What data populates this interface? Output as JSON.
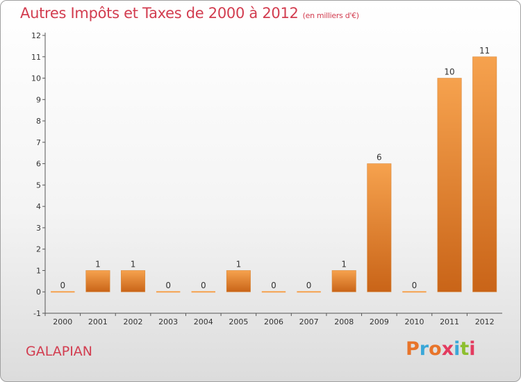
{
  "header": {
    "title": "Autres Impôts et Taxes de 2000 à 2012",
    "unit": "(en milliers d'€)"
  },
  "footer": {
    "commune": "GALAPIAN",
    "brand": "Proxiti",
    "brand_colors": [
      "#e8742a",
      "#3aa7d8",
      "#e8742a",
      "#e33b5f",
      "#3aa7d8",
      "#8dbf2e",
      "#e33b5f"
    ]
  },
  "chart_data": {
    "type": "bar",
    "categories": [
      "2000",
      "2001",
      "2002",
      "2003",
      "2004",
      "2005",
      "2006",
      "2007",
      "2008",
      "2009",
      "2010",
      "2011",
      "2012"
    ],
    "values": [
      0,
      1,
      1,
      0,
      0,
      1,
      0,
      0,
      1,
      6,
      0,
      10,
      11
    ],
    "data_labels": [
      "0",
      "1",
      "1",
      "0",
      "0",
      "1",
      "0",
      "0",
      "1",
      "6",
      "0",
      "10",
      "11"
    ],
    "yticks": [
      -1,
      0,
      1,
      2,
      3,
      4,
      5,
      6,
      7,
      8,
      9,
      10,
      11,
      12
    ],
    "ylim": [
      -1,
      12
    ],
    "grid": false,
    "bar_color_light": "#f6a24e",
    "bar_color_dark": "#c96418"
  }
}
